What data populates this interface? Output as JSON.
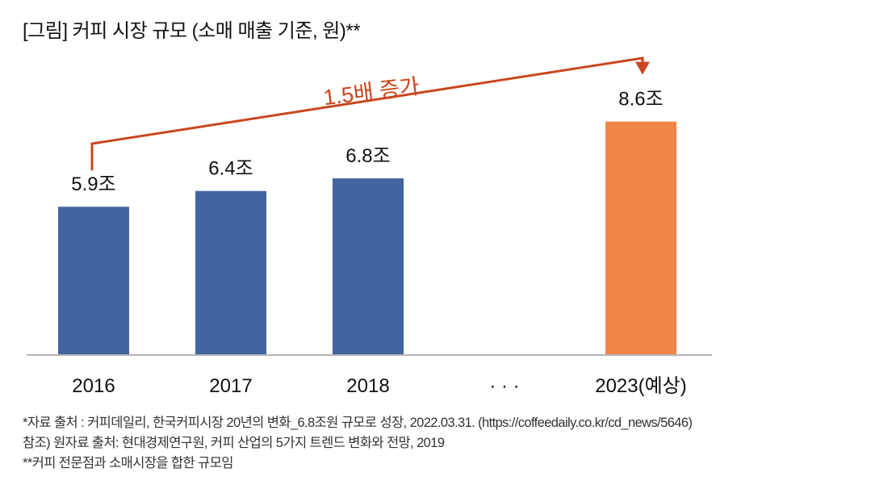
{
  "title": "[그림] 커피 시장 규모 (소매 매출 기준, 원)**",
  "chart_data": {
    "type": "bar",
    "title": "[그림] 커피 시장 규모 (소매 매출 기준, 원)**",
    "categories": [
      "2016",
      "2017",
      "2018",
      "· · ·",
      "2023(예상)"
    ],
    "values": [
      5.9,
      6.4,
      6.8,
      null,
      8.6
    ],
    "value_labels": [
      "5.9조",
      "6.4조",
      "6.8조",
      "",
      "8.6조"
    ],
    "unit": "조 원",
    "bar_colors": [
      "#4264a0",
      "#4264a0",
      "#4264a0",
      null,
      "#f08545"
    ],
    "ylim": [
      1.2,
      9.0
    ],
    "xlabel": "",
    "ylabel": "",
    "grid": false,
    "annotation": {
      "text": "1.5배 증가",
      "from_category": "2016",
      "to_category": "2023(예상)",
      "color": "#c9461f"
    }
  },
  "notes": [
    "*자료 출처 : 커피데일리, 한국커피시장 20년의 변화_6.8조원 규모로 성장, 2022.03.31. (https://coffeedaily.co.kr/cd_news/5646)",
    "참조) 원자료 출처: 현대경제연구원, 커피 산업의 5가지 트렌드 변화와 전망, 2019",
    "**커피 전문점과 소매시장을 합한 규모임"
  ]
}
